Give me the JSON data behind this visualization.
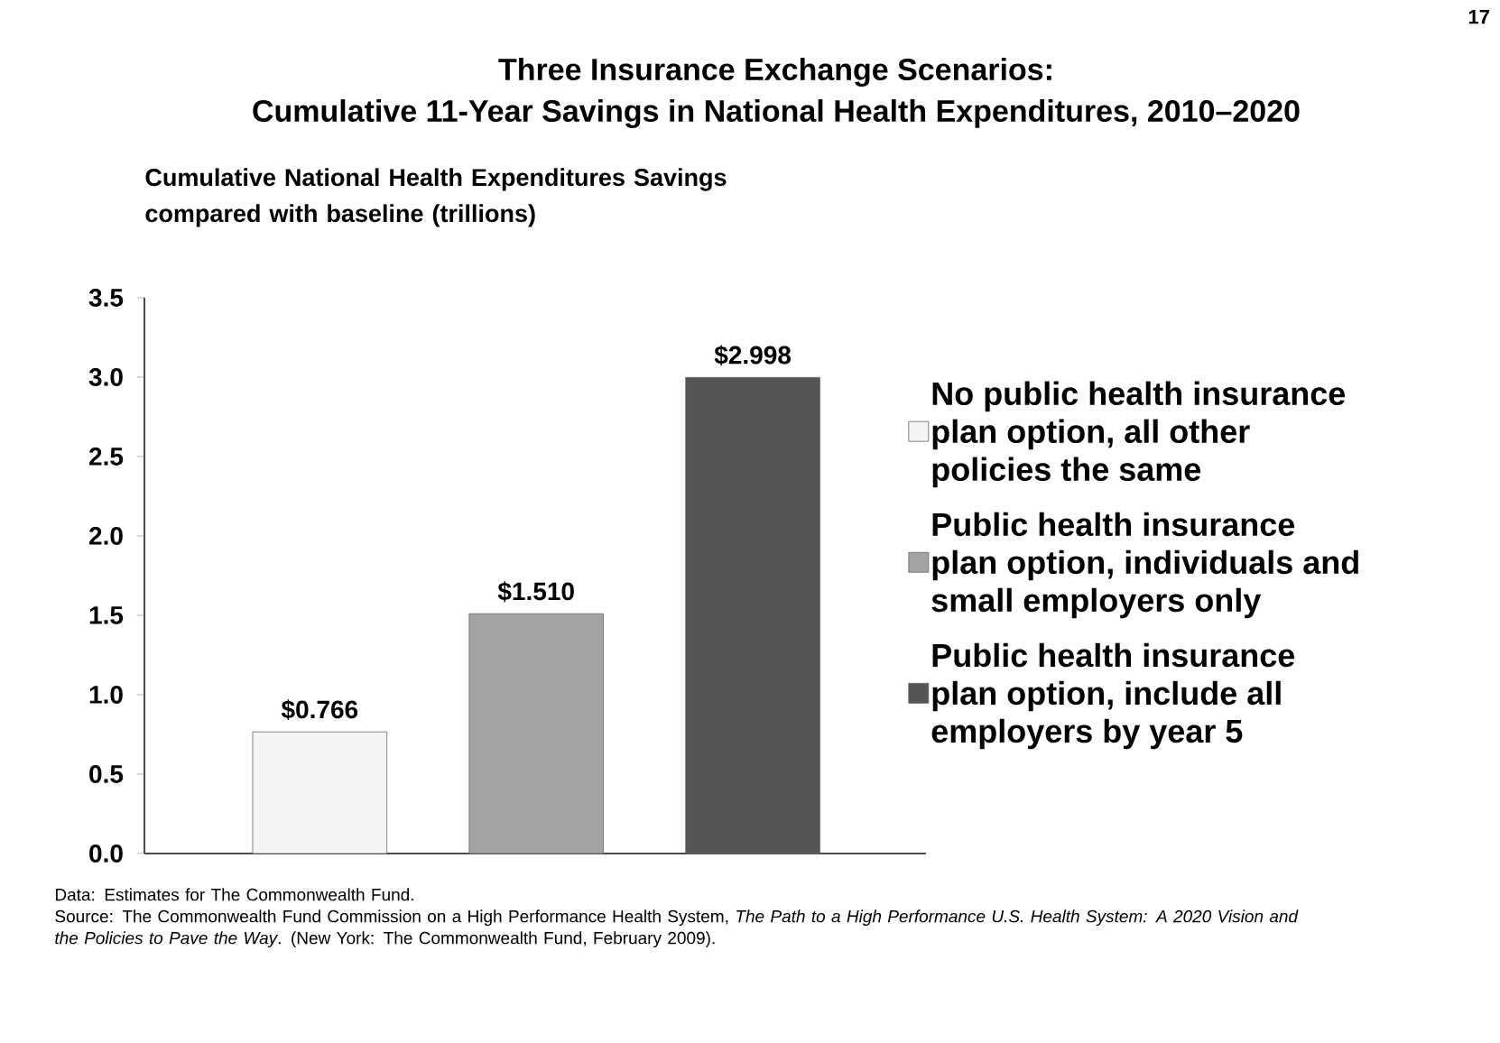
{
  "chart_data": {
    "type": "bar",
    "title": "Three Insurance Exchange Scenarios:",
    "subtitle": "Cumulative 11-Year Savings in National Health Expenditures, 2010–2020",
    "ylabel": "Cumulative National Health Expenditures Savings compared with baseline (trillions)",
    "categories": [
      null,
      null,
      null
    ],
    "series": [
      {
        "name": "No public health insurance plan option, all other policies the same",
        "color": "#f4f4f4",
        "values": [
          0.766,
          null,
          null
        ],
        "value_labels": [
          "$0.766",
          null,
          null
        ]
      },
      {
        "name": "Public health insurance plan option, individuals and small employers only",
        "color": "#a3a3a3",
        "values": [
          null,
          1.51,
          null
        ],
        "value_labels": [
          null,
          "$1.510",
          null
        ]
      },
      {
        "name": "Public health insurance plan option, include all employers by year 5",
        "color": "#555555",
        "values": [
          null,
          null,
          2.998
        ],
        "value_labels": [
          null,
          null,
          "$2.998"
        ]
      }
    ],
    "ylim": [
      0,
      3.5
    ],
    "yticks": [
      {
        "value": 0,
        "label": "0.0"
      },
      0.5,
      {
        "value": 1,
        "label": "1.0"
      },
      1.5,
      {
        "value": 2,
        "label": "2.0"
      },
      2.5,
      {
        "value": 3,
        "label": "3.0"
      },
      3.5
    ],
    "legend": "right",
    "annotations": [
      "17",
      "Data: Estimates for The Commonwealth Fund.",
      "Source: The Commonwealth Fund Commission on a High Performance Health System, *The Path to a High Performance U.S. Health System: A 2020 Vision and the Policies to Pave the Way*. (New York: The Commonwealth Fund, February 2009)."
    ]
  }
}
